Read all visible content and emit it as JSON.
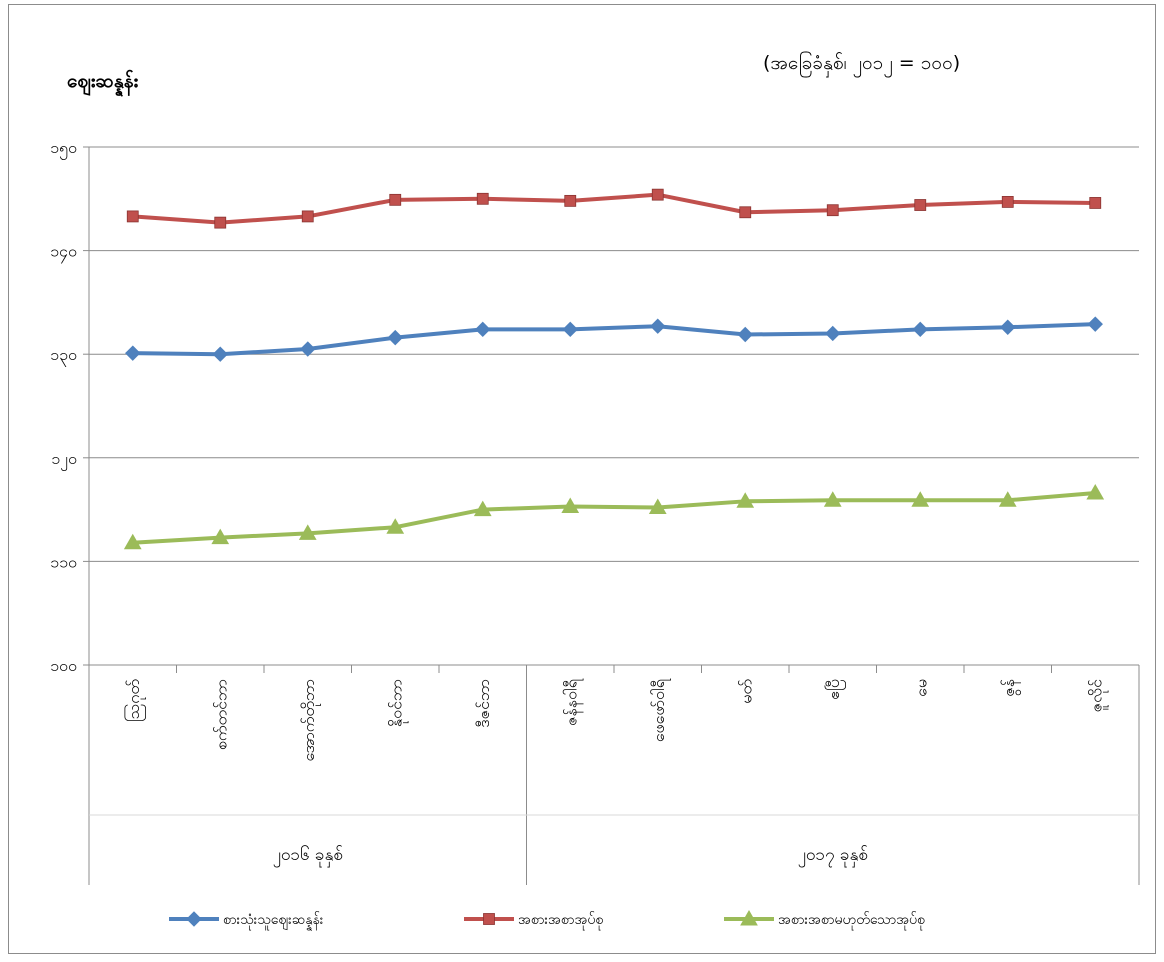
{
  "chart_data": {
    "type": "line",
    "ylabel": "ဈေးဆန္နန်း",
    "subtitle": "(အခြေခံနှစ်၊ ၂၀၁၂ = ၁၀၀)",
    "ylim": [
      100,
      150
    ],
    "y_ticks": [
      "၁၀၀",
      "၁၁၀",
      "၁၂၀",
      "၁၃၀",
      "၁၄၀",
      "၁၅၀"
    ],
    "y_tick_values": [
      100,
      110,
      120,
      130,
      140,
      150
    ],
    "grid": true,
    "legend_position": "bottom",
    "categories": [
      "ဩဂုတ်",
      "စက်တင်ဘာ",
      "အောက်တိုဘာ",
      "နိုဝင်ဘာ",
      "ဒီဇင်ဘာ",
      "ဇန်နဝါရီ",
      "ဖေဖော်ဝါရီ",
      "မတ်",
      "ဧပြီ",
      "မေ",
      "ဇွန်",
      "ဇူလိုင်"
    ],
    "groups": [
      {
        "label": "၂၀၁၆ ခုနှစ်",
        "count": 5
      },
      {
        "label": "၂၀၁၇ ခုနှစ်",
        "count": 7
      }
    ],
    "series": [
      {
        "name": "စားသုံးသူဈေးဆန္နန်း",
        "color": "#4f81bd",
        "marker": "diamond",
        "values": [
          130.1,
          130.0,
          130.5,
          131.6,
          132.4,
          132.4,
          132.7,
          131.9,
          132.0,
          132.4,
          132.6,
          132.9
        ]
      },
      {
        "name": "အစားအစာအုပ်စု",
        "color": "#c0504d",
        "marker": "square",
        "values": [
          143.3,
          142.7,
          143.3,
          144.9,
          145.0,
          144.8,
          145.4,
          143.7,
          143.9,
          144.4,
          144.7,
          144.6
        ]
      },
      {
        "name": "အစားအစာမဟုတ်သောအုပ်စု",
        "color": "#9bbb59",
        "marker": "triangle",
        "values": [
          111.8,
          112.3,
          112.7,
          113.3,
          115.0,
          115.3,
          115.2,
          115.8,
          115.9,
          115.9,
          115.9,
          116.6
        ]
      }
    ]
  }
}
